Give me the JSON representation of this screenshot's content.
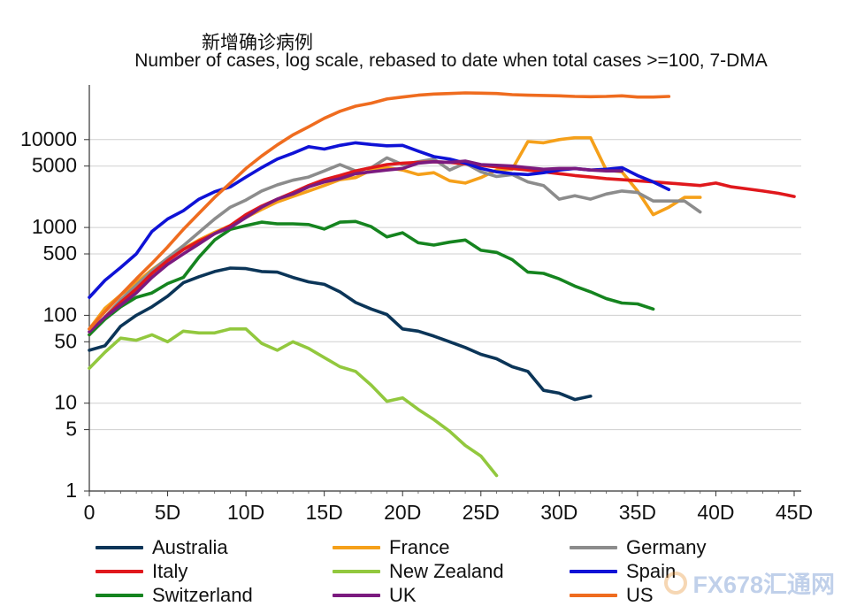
{
  "chart_data": {
    "type": "line",
    "title": "新增确诊病例",
    "subtitle": "Number of cases, log scale, rebased to date when total cases >=100, 7-DMA",
    "x_label": "",
    "y_label": "",
    "y_scale": "log",
    "xlim": [
      0,
      45
    ],
    "ylim": [
      1,
      50000
    ],
    "x_ticks": [
      0,
      5,
      10,
      15,
      20,
      25,
      30,
      35,
      40,
      45
    ],
    "x_tick_labels": [
      "0",
      "5D",
      "10D",
      "15D",
      "20D",
      "25D",
      "30D",
      "35D",
      "40D",
      "45D"
    ],
    "y_ticks": [
      1,
      5,
      10,
      50,
      100,
      500,
      1000,
      5000,
      10000
    ],
    "y_tick_labels": [
      "1",
      "5",
      "10",
      "50",
      "100",
      "500",
      "1000",
      "5000",
      "10000"
    ],
    "gridlines": "horizontal",
    "legend_position": "bottom",
    "series": [
      {
        "name": "Australia",
        "color": "#0b3558",
        "x": [
          0,
          1,
          2,
          3,
          4,
          5,
          6,
          7,
          8,
          9,
          10,
          11,
          12,
          13,
          14,
          15,
          16,
          17,
          18,
          19,
          20,
          21,
          22,
          23,
          24,
          25,
          26,
          27,
          28,
          29,
          30,
          31,
          32
        ],
        "values": [
          40,
          45,
          75,
          100,
          125,
          165,
          235,
          275,
          315,
          345,
          340,
          315,
          310,
          270,
          240,
          225,
          185,
          140,
          118,
          102,
          70,
          66,
          58,
          50,
          43,
          36,
          32,
          26,
          23,
          14,
          13,
          11,
          12
        ]
      },
      {
        "name": "France",
        "color": "#f5a01a",
        "x": [
          0,
          1,
          2,
          3,
          4,
          5,
          6,
          7,
          8,
          9,
          10,
          11,
          12,
          13,
          14,
          15,
          16,
          17,
          18,
          19,
          20,
          21,
          22,
          23,
          24,
          25,
          26,
          27,
          28,
          29,
          30,
          31,
          32,
          33,
          34,
          35,
          36,
          37,
          38,
          39
        ],
        "values": [
          70,
          120,
          170,
          235,
          330,
          445,
          570,
          720,
          880,
          1050,
          1300,
          1600,
          1950,
          2250,
          2600,
          3000,
          3500,
          3700,
          4500,
          4800,
          4500,
          4000,
          4200,
          3400,
          3200,
          3700,
          4500,
          4600,
          9500,
          9200,
          10000,
          10500,
          10500,
          4500,
          4300,
          2600,
          1400,
          1700,
          2200,
          2200
        ]
      },
      {
        "name": "Germany",
        "color": "#8c8c8c",
        "x": [
          0,
          1,
          2,
          3,
          4,
          5,
          6,
          7,
          8,
          9,
          10,
          11,
          12,
          13,
          14,
          15,
          16,
          17,
          18,
          19,
          20,
          21,
          22,
          23,
          24,
          25,
          26,
          27,
          28,
          29,
          30,
          31,
          32,
          33,
          34,
          35,
          36,
          37,
          38,
          39
        ],
        "values": [
          60,
          95,
          150,
          220,
          320,
          450,
          620,
          880,
          1250,
          1700,
          2050,
          2600,
          3050,
          3450,
          3750,
          4400,
          5200,
          4400,
          4800,
          6200,
          5200,
          5600,
          6000,
          4500,
          5400,
          4300,
          3800,
          4000,
          3300,
          3000,
          2100,
          2300,
          2100,
          2400,
          2600,
          2500,
          2000,
          2000,
          2000,
          1500
        ]
      },
      {
        "name": "Italy",
        "color": "#e0181c",
        "x": [
          0,
          1,
          2,
          3,
          4,
          5,
          6,
          7,
          8,
          9,
          10,
          11,
          12,
          13,
          14,
          15,
          16,
          17,
          18,
          19,
          20,
          21,
          22,
          23,
          24,
          25,
          26,
          27,
          28,
          29,
          30,
          31,
          32,
          33,
          34,
          35,
          36,
          37,
          38,
          39,
          40,
          41,
          42,
          43,
          44,
          45
        ],
        "values": [
          60,
          95,
          140,
          200,
          300,
          420,
          560,
          700,
          850,
          1050,
          1400,
          1750,
          2100,
          2500,
          3000,
          3500,
          3900,
          4400,
          4800,
          5200,
          5400,
          5500,
          5600,
          5500,
          5300,
          5100,
          4900,
          4700,
          4500,
          4300,
          4100,
          3900,
          3750,
          3600,
          3500,
          3400,
          3300,
          3200,
          3100,
          3000,
          3200,
          2900,
          2750,
          2600,
          2450,
          2250
        ]
      },
      {
        "name": "New Zealand",
        "color": "#92c83e",
        "x": [
          0,
          1,
          2,
          3,
          4,
          5,
          6,
          7,
          8,
          9,
          10,
          11,
          12,
          13,
          14,
          15,
          16,
          17,
          18,
          19,
          20,
          21,
          22,
          23,
          24,
          25,
          26
        ],
        "values": [
          25,
          38,
          55,
          52,
          60,
          50,
          66,
          63,
          63,
          70,
          70,
          48,
          40,
          50,
          42,
          33,
          26,
          23,
          16,
          10.5,
          11.5,
          8.5,
          6.5,
          4.8,
          3.3,
          2.5,
          1.5
        ]
      },
      {
        "name": "Spain",
        "color": "#0f12d6",
        "x": [
          0,
          1,
          2,
          3,
          4,
          5,
          6,
          7,
          8,
          9,
          10,
          11,
          12,
          13,
          14,
          15,
          16,
          17,
          18,
          19,
          20,
          21,
          22,
          23,
          24,
          25,
          26,
          27,
          28,
          29,
          30,
          31,
          32,
          33,
          34,
          35,
          36,
          37
        ],
        "values": [
          160,
          250,
          350,
          500,
          900,
          1250,
          1550,
          2100,
          2550,
          2900,
          3750,
          4800,
          6000,
          7000,
          8300,
          7800,
          8600,
          9200,
          8800,
          8500,
          8600,
          7400,
          6400,
          6000,
          5400,
          4700,
          4300,
          4100,
          4000,
          4200,
          4500,
          4700,
          4500,
          4600,
          4800,
          3900,
          3300,
          2700
        ]
      },
      {
        "name": "Switzerland",
        "color": "#15841f",
        "x": [
          0,
          1,
          2,
          3,
          4,
          5,
          6,
          7,
          8,
          9,
          10,
          11,
          12,
          13,
          14,
          15,
          16,
          17,
          18,
          19,
          20,
          21,
          22,
          23,
          24,
          25,
          26,
          27,
          28,
          29,
          30,
          31,
          32,
          33,
          34,
          35,
          36
        ],
        "values": [
          60,
          90,
          125,
          160,
          180,
          230,
          270,
          460,
          720,
          950,
          1050,
          1150,
          1100,
          1100,
          1080,
          960,
          1150,
          1170,
          1020,
          780,
          870,
          670,
          630,
          680,
          720,
          550,
          520,
          430,
          310,
          300,
          260,
          215,
          185,
          155,
          138,
          135,
          118
        ]
      },
      {
        "name": "UK",
        "color": "#7b1a7f",
        "x": [
          0,
          1,
          2,
          3,
          4,
          5,
          6,
          7,
          8,
          9,
          10,
          11,
          12,
          13,
          14,
          15,
          16,
          17,
          18,
          19,
          20,
          21,
          22,
          23,
          24,
          25,
          26,
          27,
          28,
          29,
          30,
          31,
          32,
          33,
          34
        ],
        "values": [
          65,
          95,
          130,
          180,
          270,
          380,
          500,
          650,
          850,
          1000,
          1300,
          1700,
          2100,
          2400,
          2900,
          3300,
          3600,
          4100,
          4300,
          4500,
          4700,
          5400,
          5600,
          5500,
          5700,
          5200,
          5100,
          5000,
          4800,
          4600,
          4700,
          4700,
          4500,
          4400,
          4400
        ]
      },
      {
        "name": "US",
        "color": "#ef6c1f",
        "x": [
          0,
          1,
          2,
          3,
          4,
          5,
          6,
          7,
          8,
          9,
          10,
          11,
          12,
          13,
          14,
          15,
          16,
          17,
          18,
          19,
          20,
          21,
          22,
          23,
          24,
          25,
          26,
          27,
          28,
          29,
          30,
          31,
          32,
          33,
          34,
          35,
          36,
          37
        ],
        "values": [
          70,
          110,
          170,
          260,
          390,
          600,
          950,
          1450,
          2200,
          3200,
          4700,
          6500,
          8700,
          11300,
          14000,
          17500,
          21000,
          24000,
          26000,
          29000,
          30500,
          32000,
          33000,
          33500,
          34000,
          33800,
          33500,
          32500,
          32000,
          31800,
          31500,
          31000,
          30800,
          31000,
          31500,
          30500,
          30500,
          31000
        ]
      }
    ]
  },
  "watermark": {
    "text": "FX678汇通网"
  }
}
